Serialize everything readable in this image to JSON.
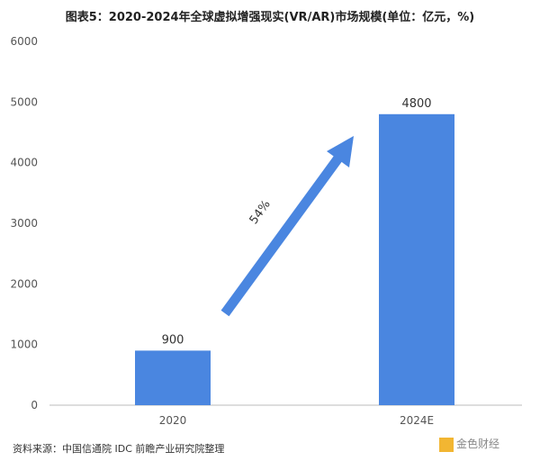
{
  "chart_data": {
    "type": "bar",
    "title": "图表5：2020-2024年全球虚拟增强现实(VR/AR)市场规模(单位：亿元，%)",
    "categories": [
      "2020",
      "2024E"
    ],
    "values": [
      900,
      4800
    ],
    "ylim": [
      0,
      6000
    ],
    "yticks": [
      0,
      1000,
      2000,
      3000,
      4000,
      5000,
      6000
    ],
    "grid": false,
    "bar_color": "#4a86e0",
    "annotation": {
      "text": "54%",
      "type": "arrow",
      "from": "2020",
      "to": "2024E"
    }
  },
  "source": "资料来源：中国信通院 IDC 前瞻产业研究院整理",
  "watermark_logo": "金色财经"
}
